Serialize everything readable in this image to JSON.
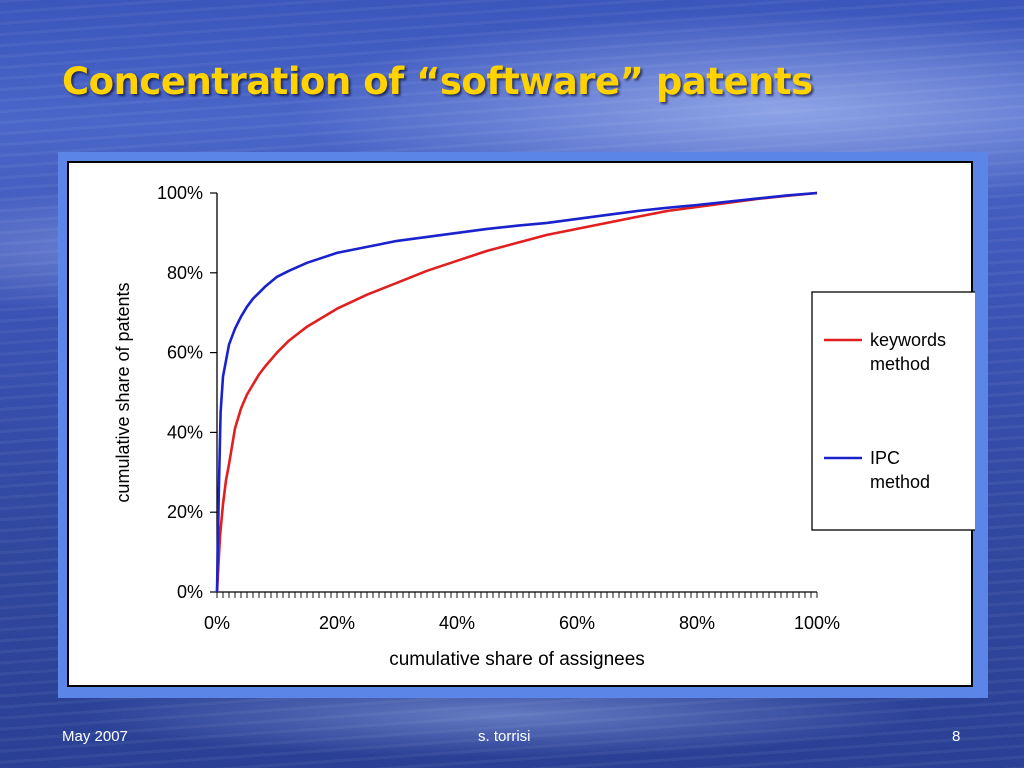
{
  "slide": {
    "title": "Concentration of “software” patents",
    "footer_left": "May 2007",
    "footer_center": "s. torrisi",
    "footer_right": "8"
  },
  "colors": {
    "title": "#ffd200",
    "keywords_series": "#e02020",
    "ipc_series": "#1a22cc",
    "frame": "#5b86e8"
  },
  "chart_data": {
    "type": "line",
    "title": "",
    "xlabel": "cumulative share of assignees",
    "ylabel": "cumulative share of patents",
    "xlim": [
      0,
      100
    ],
    "ylim": [
      0,
      100
    ],
    "xticks": [
      "0%",
      "20%",
      "40%",
      "60%",
      "80%",
      "100%"
    ],
    "yticks": [
      "0%",
      "20%",
      "40%",
      "60%",
      "80%",
      "100%"
    ],
    "grid": false,
    "legend_position": "right",
    "series": [
      {
        "name": "keywords method",
        "color": "#e02020",
        "x": [
          0,
          0.5,
          1,
          1.5,
          2,
          3,
          4,
          5,
          6,
          7,
          8,
          10,
          12,
          15,
          20,
          25,
          30,
          35,
          40,
          45,
          50,
          55,
          60,
          65,
          70,
          75,
          80,
          85,
          90,
          95,
          100
        ],
        "y": [
          0,
          14,
          22,
          28,
          32,
          41,
          46,
          49.5,
          52,
          54.5,
          56.5,
          60,
          63,
          66.5,
          71,
          74.5,
          77.5,
          80.5,
          83,
          85.5,
          87.5,
          89.5,
          91,
          92.5,
          94,
          95.5,
          96.5,
          97.5,
          98.5,
          99.3,
          100
        ]
      },
      {
        "name": "IPC method",
        "color": "#1a22cc",
        "x": [
          0,
          0.3,
          0.6,
          1,
          1.5,
          2,
          3,
          4,
          5,
          6,
          7,
          8,
          10,
          12,
          15,
          20,
          25,
          30,
          35,
          40,
          45,
          50,
          55,
          60,
          65,
          70,
          75,
          80,
          85,
          90,
          95,
          100
        ],
        "y": [
          0,
          25,
          45,
          54,
          58,
          62,
          66,
          69,
          71.5,
          73.5,
          75,
          76.5,
          79,
          80.5,
          82.5,
          85,
          86.5,
          88,
          89,
          90,
          91,
          91.8,
          92.5,
          93.5,
          94.5,
          95.5,
          96.3,
          97,
          97.8,
          98.6,
          99.4,
          100
        ]
      }
    ]
  }
}
